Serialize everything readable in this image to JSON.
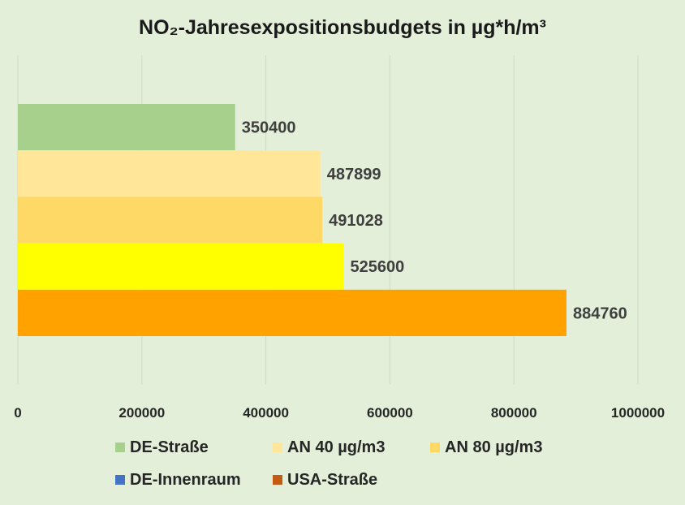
{
  "chart_data": {
    "type": "bar",
    "orientation": "horizontal",
    "title": "NO₂-Jahresexpositionsbudgets  in µg*h/m³",
    "xlim": [
      0,
      1000000
    ],
    "x_ticks": [
      "0",
      "200000",
      "400000",
      "600000",
      "800000",
      "1000000"
    ],
    "grid": "vertical",
    "legend_position": "bottom",
    "bars": [
      {
        "label": "350400",
        "value": 350400,
        "color": "#a8d08d"
      },
      {
        "label": "487899",
        "value": 487899,
        "color": "#ffe699"
      },
      {
        "label": "491028",
        "value": 491028,
        "color": "#ffd966"
      },
      {
        "label": "525600",
        "value": 525600,
        "color": "#ffff00"
      },
      {
        "label": "884760",
        "value": 884760,
        "color": "#ffa200"
      }
    ],
    "legend": [
      {
        "name": "DE-Straße",
        "color": "#a8d08d"
      },
      {
        "name": "AN 40 µg/m3",
        "color": "#ffe699"
      },
      {
        "name": "AN 80 µg/m3",
        "color": "#ffd966"
      },
      {
        "name": "DE-Innenraum",
        "color": "#4472c4"
      },
      {
        "name": "USA-Straße",
        "color": "#c55a11"
      }
    ]
  }
}
